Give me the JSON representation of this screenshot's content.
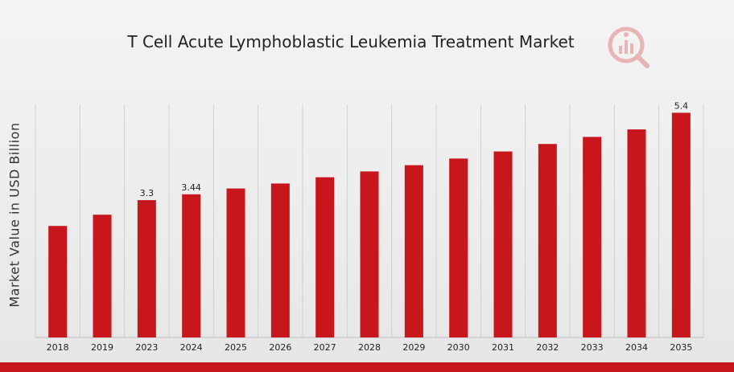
{
  "title": "T Cell Acute Lymphoblastic Leukemia Treatment Market",
  "colors": {
    "bar": "#c8161d",
    "grid": "#d0d0d0",
    "accent": "#c8161d"
  },
  "icons": {
    "logo": "market-research-logo-icon"
  },
  "chart_data": {
    "type": "bar",
    "title": "T Cell Acute Lymphoblastic Leukemia Treatment Market",
    "xlabel": "",
    "ylabel": "Market Value in USD Billion",
    "categories": [
      "2018",
      "2019",
      "2023",
      "2024",
      "2025",
      "2026",
      "2027",
      "2028",
      "2029",
      "2030",
      "2031",
      "2032",
      "2033",
      "2034",
      "2035"
    ],
    "values": [
      2.68,
      2.95,
      3.3,
      3.44,
      3.58,
      3.7,
      3.85,
      3.99,
      4.14,
      4.3,
      4.47,
      4.65,
      4.82,
      5.0,
      5.4
    ],
    "data_labels": [
      {
        "index": 2,
        "text": "3.3"
      },
      {
        "index": 3,
        "text": "3.44"
      },
      {
        "index": 14,
        "text": "5.4"
      }
    ],
    "ylim": [
      0,
      5.6
    ],
    "grid": "vertical",
    "legend": "none"
  }
}
